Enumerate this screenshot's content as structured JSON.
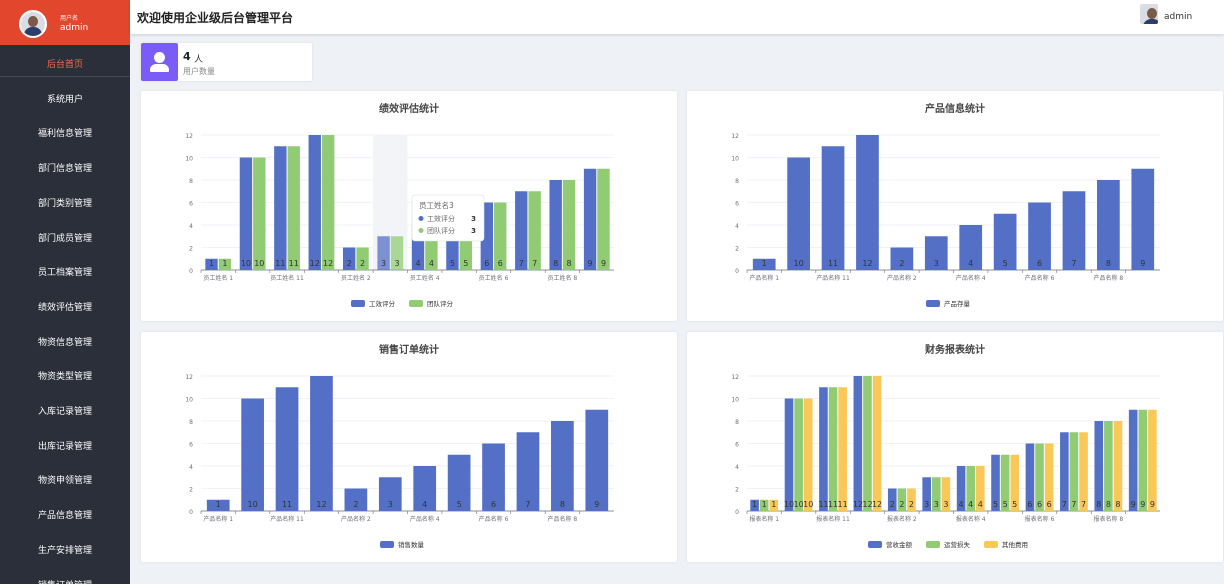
{
  "sidebar": {
    "user_label": "用户名",
    "user_name": "admin",
    "menu": [
      "后台首页",
      "系统用户",
      "福利信息管理",
      "部门信息管理",
      "部门类别管理",
      "部门成员管理",
      "员工档案管理",
      "绩效评估管理",
      "物资信息管理",
      "物资类型管理",
      "入库记录管理",
      "出库记录管理",
      "物资申领管理",
      "产品信息管理",
      "生产安排管理",
      "销售订单管理"
    ]
  },
  "header": {
    "title": "欢迎使用企业级后台管理平台",
    "user": "admin"
  },
  "stat": {
    "count": 4,
    "unit": "人",
    "label": "用户数量"
  },
  "chart_data": [
    {
      "type": "bar",
      "title": "绩效评估统计",
      "categories": [
        "员工姓名 1",
        null,
        "员工姓名 11",
        null,
        "员工姓名 2",
        null,
        "员工姓名 4",
        null,
        "员工姓名 6",
        null,
        "员工姓名 8",
        null
      ],
      "series": [
        {
          "name": "工效评分",
          "color": "#5470c6",
          "values": [
            1,
            10,
            11,
            12,
            2,
            3,
            4,
            5,
            6,
            7,
            8,
            9
          ]
        },
        {
          "name": "团队评分",
          "color": "#91cc75",
          "values": [
            1,
            10,
            11,
            12,
            2,
            3,
            4,
            5,
            6,
            7,
            8,
            9
          ]
        }
      ],
      "ylim": [
        0,
        12
      ],
      "yticks": [
        0,
        2,
        4,
        6,
        8,
        10,
        12
      ],
      "grid": true,
      "tooltip_title": "员工姓名3"
    },
    {
      "type": "bar",
      "title": "产品信息统计",
      "categories": [
        "产品名称 1",
        null,
        "产品名称 11",
        null,
        "产品名称 2",
        null,
        "产品名称 4",
        null,
        "产品名称 6",
        null,
        "产品名称 8",
        null
      ],
      "series": [
        {
          "name": "产品存量",
          "color": "#5470c6",
          "values": [
            1,
            10,
            11,
            12,
            2,
            3,
            4,
            5,
            6,
            7,
            8,
            9
          ]
        }
      ],
      "ylim": [
        0,
        12
      ],
      "yticks": [
        0,
        2,
        4,
        6,
        8,
        10,
        12
      ],
      "grid": true
    },
    {
      "type": "bar",
      "title": "销售订单统计",
      "categories": [
        "产品名称 1",
        null,
        "产品名称 11",
        null,
        "产品名称 2",
        null,
        "产品名称 4",
        null,
        "产品名称 6",
        null,
        "产品名称 8",
        null
      ],
      "series": [
        {
          "name": "销售数量",
          "color": "#5470c6",
          "values": [
            1,
            10,
            11,
            12,
            2,
            3,
            4,
            5,
            6,
            7,
            8,
            9
          ]
        }
      ],
      "ylim": [
        0,
        12
      ],
      "yticks": [
        0,
        2,
        4,
        6,
        8,
        10,
        12
      ],
      "grid": true
    },
    {
      "type": "bar",
      "title": "财务报表统计",
      "categories": [
        "报表名称 1",
        null,
        "报表名称 11",
        null,
        "报表名称 2",
        null,
        "报表名称 4",
        null,
        "报表名称 6",
        null,
        "报表名称 8",
        null
      ],
      "series": [
        {
          "name": "营收金额",
          "color": "#5470c6",
          "values": [
            1,
            10,
            11,
            12,
            2,
            3,
            4,
            5,
            6,
            7,
            8,
            9
          ]
        },
        {
          "name": "运营损失",
          "color": "#91cc75",
          "values": [
            1,
            10,
            11,
            12,
            2,
            3,
            4,
            5,
            6,
            7,
            8,
            9
          ]
        },
        {
          "name": "其他费用",
          "color": "#fac858",
          "values": [
            1,
            10,
            11,
            12,
            2,
            3,
            4,
            5,
            6,
            7,
            8,
            9
          ]
        }
      ],
      "ylim": [
        0,
        12
      ],
      "yticks": [
        0,
        2,
        4,
        6,
        8,
        10,
        12
      ],
      "grid": true
    }
  ]
}
